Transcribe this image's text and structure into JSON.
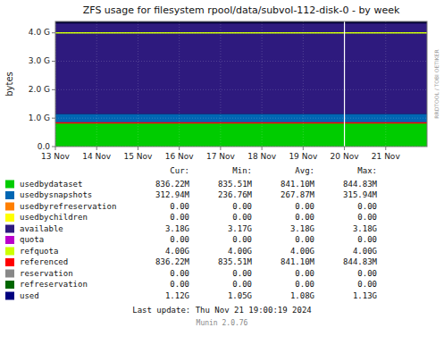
{
  "chart_data": {
    "type": "area",
    "title": "ZFS usage for filesystem rpool/data/subvol-112-disk-0 - by week",
    "ylabel": "bytes",
    "stacked": true,
    "grid": true,
    "legend": "bottom",
    "background": "#000032",
    "xlim": [
      1699833600,
      1700611200
    ],
    "xticks": [
      {
        "value": 1699833600,
        "label": "13 Nov"
      },
      {
        "value": 1699920000,
        "label": "14 Nov"
      },
      {
        "value": 1700006400,
        "label": "15 Nov"
      },
      {
        "value": 1700092800,
        "label": "16 Nov"
      },
      {
        "value": 1700179200,
        "label": "17 Nov"
      },
      {
        "value": 1700265600,
        "label": "18 Nov"
      },
      {
        "value": 1700352000,
        "label": "19 Nov"
      },
      {
        "value": 1700438400,
        "label": "20 Nov"
      },
      {
        "value": 1700524800,
        "label": "21 Nov"
      }
    ],
    "ylim": [
      0,
      4400000000
    ],
    "yticks": [
      {
        "value": 0,
        "label": "0.0"
      },
      {
        "value": 1000000000,
        "label": "1.0 G"
      },
      {
        "value": 2000000000,
        "label": "2.0 G"
      },
      {
        "value": 3000000000,
        "label": "3.0 G"
      },
      {
        "value": 4000000000,
        "label": "4.0 G"
      }
    ],
    "legend_columns": [
      "Cur:",
      "Min:",
      "Avg:",
      "Max:"
    ],
    "series": [
      {
        "name": "usedbydataset",
        "color": "#00cc00",
        "type": "area",
        "values": [
          836220000
        ],
        "cur": "836.22M",
        "min": "835.51M",
        "avg": "841.10M",
        "max": "844.83M"
      },
      {
        "name": "usedbysnapshots",
        "color": "#0066b3",
        "type": "area",
        "values": [
          312940000
        ],
        "cur": "312.94M",
        "min": "236.76M",
        "avg": "267.87M",
        "max": "315.94M"
      },
      {
        "name": "usedbyrefreservation",
        "color": "#ff7f00",
        "cur": "0.00",
        "min": "0.00",
        "avg": "0.00",
        "max": "0.00"
      },
      {
        "name": "usedbychildren",
        "color": "#ffff00",
        "cur": "0.00",
        "min": "0.00",
        "avg": "0.00",
        "max": "0.00"
      },
      {
        "name": "available",
        "color": "#2e1a7e",
        "type": "area",
        "values": [
          3180000000
        ],
        "cur": "3.18G",
        "min": "3.17G",
        "avg": "3.18G",
        "max": "3.18G"
      },
      {
        "name": "quota",
        "color": "#bb00cc",
        "cur": "0.00",
        "min": "0.00",
        "avg": "0.00",
        "max": "0.00"
      },
      {
        "name": "refquota",
        "color": "#ccff00",
        "type": "line",
        "values": [
          4000000000
        ],
        "cur": "4.00G",
        "min": "4.00G",
        "avg": "4.00G",
        "max": "4.00G"
      },
      {
        "name": "referenced",
        "color": "#ff0000",
        "type": "line",
        "values": [
          836220000
        ],
        "cur": "836.22M",
        "min": "835.51M",
        "avg": "841.10M",
        "max": "844.83M"
      },
      {
        "name": "reservation",
        "color": "#888888",
        "cur": "0.00",
        "min": "0.00",
        "avg": "0.00",
        "max": "0.00"
      },
      {
        "name": "refreservation",
        "color": "#006600",
        "cur": "0.00",
        "min": "0.00",
        "avg": "0.00",
        "max": "0.00"
      },
      {
        "name": "used",
        "color": "#00007f",
        "cur": "1.12G",
        "min": "1.05G",
        "avg": "1.08G",
        "max": "1.13G"
      }
    ],
    "annotations": [
      {
        "type": "vline",
        "x": 1700438400,
        "color": "#ffffff"
      }
    ],
    "watermark": "RRDTOOL / TOBI OETIKER",
    "footer": [
      "Last update: Thu Nov 21 19:00:19 2024",
      "Munin 2.0.76"
    ]
  }
}
